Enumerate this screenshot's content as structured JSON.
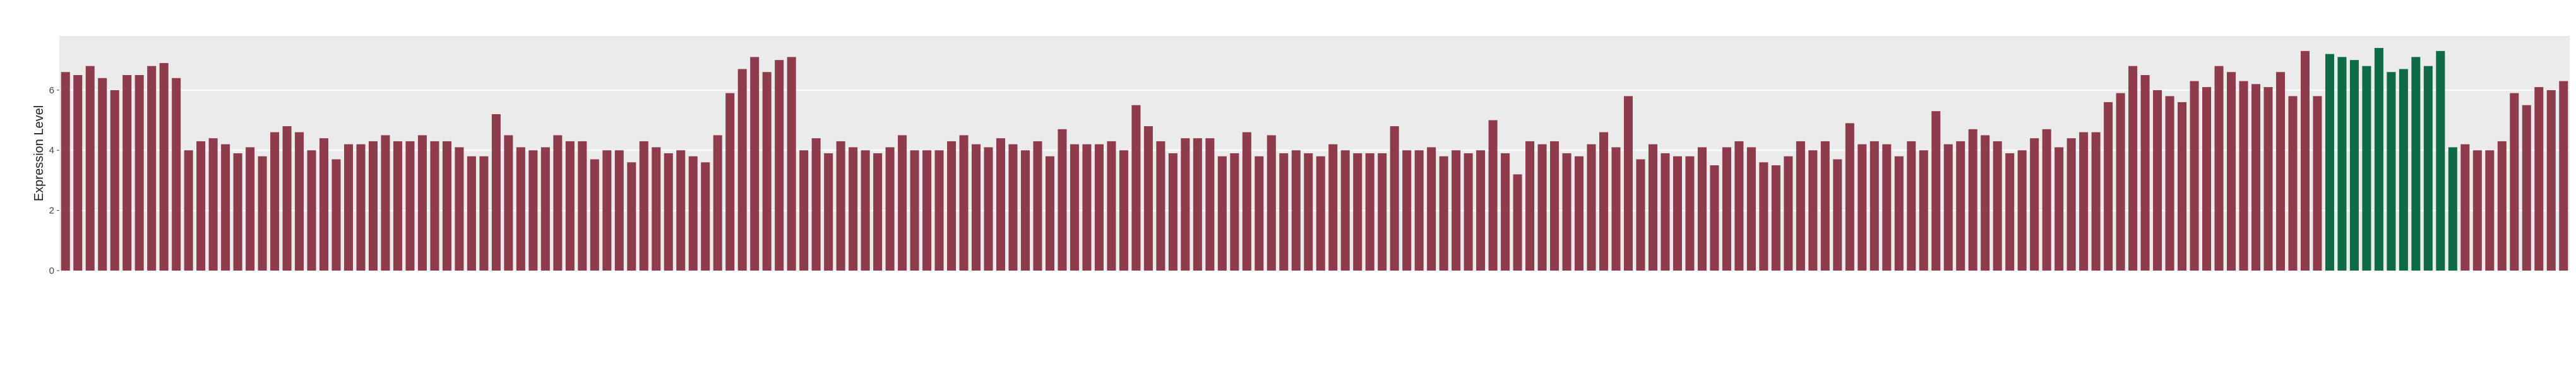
{
  "chart_data": {
    "type": "bar",
    "y_label": "Expression Level",
    "ylim": [
      0,
      7.8
    ],
    "yticks": [
      0,
      2,
      4,
      6
    ],
    "grid": true,
    "categories": [
      null,
      null,
      null,
      null,
      null,
      null,
      null,
      null,
      null,
      null,
      null,
      null,
      null,
      null,
      null,
      null,
      null,
      null,
      null,
      null,
      null,
      null,
      null,
      null,
      null,
      null,
      null,
      null,
      null,
      null,
      null,
      null,
      null,
      null,
      null,
      null,
      null,
      null,
      null,
      null,
      null,
      null,
      null,
      null,
      null,
      null,
      null,
      null,
      null,
      null,
      null,
      null,
      null,
      null,
      null,
      null,
      null,
      null,
      null,
      null,
      null,
      null,
      null,
      null,
      null,
      null,
      null,
      null,
      null,
      null,
      null,
      null,
      null,
      null,
      null,
      null,
      null,
      null,
      null,
      null,
      null,
      null,
      null,
      null,
      null,
      null,
      null,
      null,
      null,
      null,
      null,
      null,
      null,
      null,
      null,
      null,
      null,
      null,
      null,
      null,
      null,
      null,
      null,
      null,
      null,
      null,
      null,
      null,
      null,
      null,
      null,
      null,
      null,
      null,
      null,
      null,
      null,
      null,
      null,
      null,
      null,
      null,
      null,
      null,
      null,
      null,
      null,
      null,
      null,
      null,
      null,
      null,
      null,
      null,
      null,
      null,
      null,
      null,
      null,
      null,
      null,
      null,
      null,
      null,
      null,
      null,
      null,
      null,
      null,
      null,
      null,
      null,
      null,
      null,
      null,
      null,
      null,
      null,
      null,
      null,
      null,
      null,
      null,
      null,
      null,
      null,
      null,
      null,
      null,
      null,
      null,
      null,
      null,
      null,
      null,
      null,
      null,
      null,
      null,
      null,
      null,
      null,
      null,
      null,
      null,
      null,
      null,
      null,
      null,
      null,
      null,
      null,
      null,
      null,
      null,
      null,
      null,
      null,
      null,
      null,
      null,
      null,
      null,
      null
    ],
    "values": [
      6.6,
      6.5,
      6.8,
      6.4,
      6.0,
      6.5,
      6.5,
      6.8,
      6.9,
      6.4,
      4.0,
      4.3,
      4.4,
      4.2,
      3.9,
      4.1,
      3.8,
      4.6,
      4.8,
      4.6,
      4.0,
      4.4,
      3.7,
      4.2,
      4.2,
      4.3,
      4.5,
      4.3,
      4.3,
      4.5,
      4.3,
      4.3,
      4.1,
      3.8,
      3.8,
      5.2,
      4.5,
      4.1,
      4.0,
      4.1,
      4.5,
      4.3,
      4.3,
      3.7,
      4.0,
      4.0,
      3.6,
      4.3,
      4.1,
      3.9,
      4.0,
      3.8,
      3.6,
      4.5,
      5.9,
      6.7,
      7.1,
      6.6,
      7.0,
      7.1,
      4.0,
      4.4,
      3.9,
      4.3,
      4.1,
      4.0,
      3.9,
      4.1,
      4.5,
      4.0,
      4.0,
      4.0,
      4.3,
      4.5,
      4.2,
      4.1,
      4.4,
      4.2,
      4.0,
      4.3,
      3.8,
      4.7,
      4.2,
      4.2,
      4.2,
      4.3,
      4.0,
      5.5,
      4.8,
      4.3,
      3.9,
      4.4,
      4.4,
      4.4,
      3.8,
      3.9,
      4.6,
      3.8,
      4.5,
      3.9,
      4.0,
      3.9,
      3.8,
      4.2,
      4.0,
      3.9,
      3.9,
      3.9,
      4.8,
      4.0,
      4.0,
      4.1,
      3.8,
      4.0,
      3.9,
      4.0,
      5.0,
      3.9,
      3.2,
      4.3,
      4.2,
      4.3,
      3.9,
      3.8,
      4.2,
      4.6,
      4.1,
      5.8,
      3.7,
      4.2,
      3.9,
      3.8,
      3.8,
      4.1,
      3.5,
      4.1,
      4.3,
      4.1,
      3.6,
      3.5,
      3.8,
      4.3,
      4.0,
      4.3,
      3.7,
      4.9,
      4.2,
      4.3,
      4.2,
      3.8,
      4.3,
      4.0,
      5.3,
      4.2,
      4.3,
      4.7,
      4.5,
      4.3,
      3.9,
      4.0,
      4.4,
      4.7,
      4.1,
      4.4,
      4.6,
      4.6,
      5.6,
      5.9,
      6.8,
      6.5,
      6.0,
      5.8,
      5.6,
      6.3,
      6.1,
      6.8,
      6.6,
      6.3,
      6.2,
      6.1,
      6.6,
      5.8,
      7.3,
      5.8,
      7.2,
      7.1,
      7.0,
      6.8,
      7.4,
      6.6,
      6.7,
      7.1,
      6.8,
      7.3,
      4.1,
      4.2,
      4.0,
      4.0,
      4.3,
      5.9,
      5.5,
      6.1,
      6.0,
      6.3
    ],
    "colors": [
      "#8e3b4b",
      "#8e3b4b",
      "#8e3b4b",
      "#8e3b4b",
      "#8e3b4b",
      "#8e3b4b",
      "#8e3b4b",
      "#8e3b4b",
      "#8e3b4b",
      "#8e3b4b",
      "#8e3b4b",
      "#8e3b4b",
      "#8e3b4b",
      "#8e3b4b",
      "#8e3b4b",
      "#8e3b4b",
      "#8e3b4b",
      "#8e3b4b",
      "#8e3b4b",
      "#8e3b4b",
      "#8e3b4b",
      "#8e3b4b",
      "#8e3b4b",
      "#8e3b4b",
      "#8e3b4b",
      "#8e3b4b",
      "#8e3b4b",
      "#8e3b4b",
      "#8e3b4b",
      "#8e3b4b",
      "#8e3b4b",
      "#8e3b4b",
      "#8e3b4b",
      "#8e3b4b",
      "#8e3b4b",
      "#8e3b4b",
      "#8e3b4b",
      "#8e3b4b",
      "#8e3b4b",
      "#8e3b4b",
      "#8e3b4b",
      "#8e3b4b",
      "#8e3b4b",
      "#8e3b4b",
      "#8e3b4b",
      "#8e3b4b",
      "#8e3b4b",
      "#8e3b4b",
      "#8e3b4b",
      "#8e3b4b",
      "#8e3b4b",
      "#8e3b4b",
      "#8e3b4b",
      "#8e3b4b",
      "#8e3b4b",
      "#8e3b4b",
      "#8e3b4b",
      "#8e3b4b",
      "#8e3b4b",
      "#8e3b4b",
      "#8e3b4b",
      "#8e3b4b",
      "#8e3b4b",
      "#8e3b4b",
      "#8e3b4b",
      "#8e3b4b",
      "#8e3b4b",
      "#8e3b4b",
      "#8e3b4b",
      "#8e3b4b",
      "#8e3b4b",
      "#8e3b4b",
      "#8e3b4b",
      "#8e3b4b",
      "#8e3b4b",
      "#8e3b4b",
      "#8e3b4b",
      "#8e3b4b",
      "#8e3b4b",
      "#8e3b4b",
      "#8e3b4b",
      "#8e3b4b",
      "#8e3b4b",
      "#8e3b4b",
      "#8e3b4b",
      "#8e3b4b",
      "#8e3b4b",
      "#8e3b4b",
      "#8e3b4b",
      "#8e3b4b",
      "#8e3b4b",
      "#8e3b4b",
      "#8e3b4b",
      "#8e3b4b",
      "#8e3b4b",
      "#8e3b4b",
      "#8e3b4b",
      "#8e3b4b",
      "#8e3b4b",
      "#8e3b4b",
      "#8e3b4b",
      "#8e3b4b",
      "#8e3b4b",
      "#8e3b4b",
      "#8e3b4b",
      "#8e3b4b",
      "#8e3b4b",
      "#8e3b4b",
      "#8e3b4b",
      "#8e3b4b",
      "#8e3b4b",
      "#8e3b4b",
      "#8e3b4b",
      "#8e3b4b",
      "#8e3b4b",
      "#8e3b4b",
      "#8e3b4b",
      "#8e3b4b",
      "#8e3b4b",
      "#8e3b4b",
      "#8e3b4b",
      "#8e3b4b",
      "#8e3b4b",
      "#8e3b4b",
      "#8e3b4b",
      "#8e3b4b",
      "#8e3b4b",
      "#8e3b4b",
      "#8e3b4b",
      "#8e3b4b",
      "#8e3b4b",
      "#8e3b4b",
      "#8e3b4b",
      "#8e3b4b",
      "#8e3b4b",
      "#8e3b4b",
      "#8e3b4b",
      "#8e3b4b",
      "#8e3b4b",
      "#8e3b4b",
      "#8e3b4b",
      "#8e3b4b",
      "#8e3b4b",
      "#8e3b4b",
      "#8e3b4b",
      "#8e3b4b",
      "#8e3b4b",
      "#8e3b4b",
      "#8e3b4b",
      "#8e3b4b",
      "#8e3b4b",
      "#8e3b4b",
      "#8e3b4b",
      "#8e3b4b",
      "#8e3b4b",
      "#8e3b4b",
      "#8e3b4b",
      "#8e3b4b",
      "#8e3b4b",
      "#8e3b4b",
      "#8e3b4b",
      "#8e3b4b",
      "#8e3b4b",
      "#8e3b4b",
      "#8e3b4b",
      "#8e3b4b",
      "#8e3b4b",
      "#8e3b4b",
      "#8e3b4b",
      "#8e3b4b",
      "#8e3b4b",
      "#8e3b4b",
      "#8e3b4b",
      "#8e3b4b",
      "#8e3b4b",
      "#8e3b4b",
      "#8e3b4b",
      "#8e3b4b",
      "#8e3b4b",
      "#8e3b4b",
      "#8e3b4b",
      "#8e3b4b",
      "#8e3b4b",
      "#8e3b4b",
      "#0e6b45",
      "#0e6b45",
      "#0e6b45",
      "#0e6b45",
      "#0e6b45",
      "#0e6b45",
      "#0e6b45",
      "#0e6b45",
      "#0e6b45",
      "#0e6b45",
      "#0e6b45",
      "#8e3b4b",
      "#8e3b4b",
      "#8e3b4b",
      "#8e3b4b",
      "#8e3b4b",
      "#8e3b4b",
      "#8e3b4b",
      "#8e3b4b",
      "#8e3b4b",
      "#8e3b4b"
    ]
  }
}
